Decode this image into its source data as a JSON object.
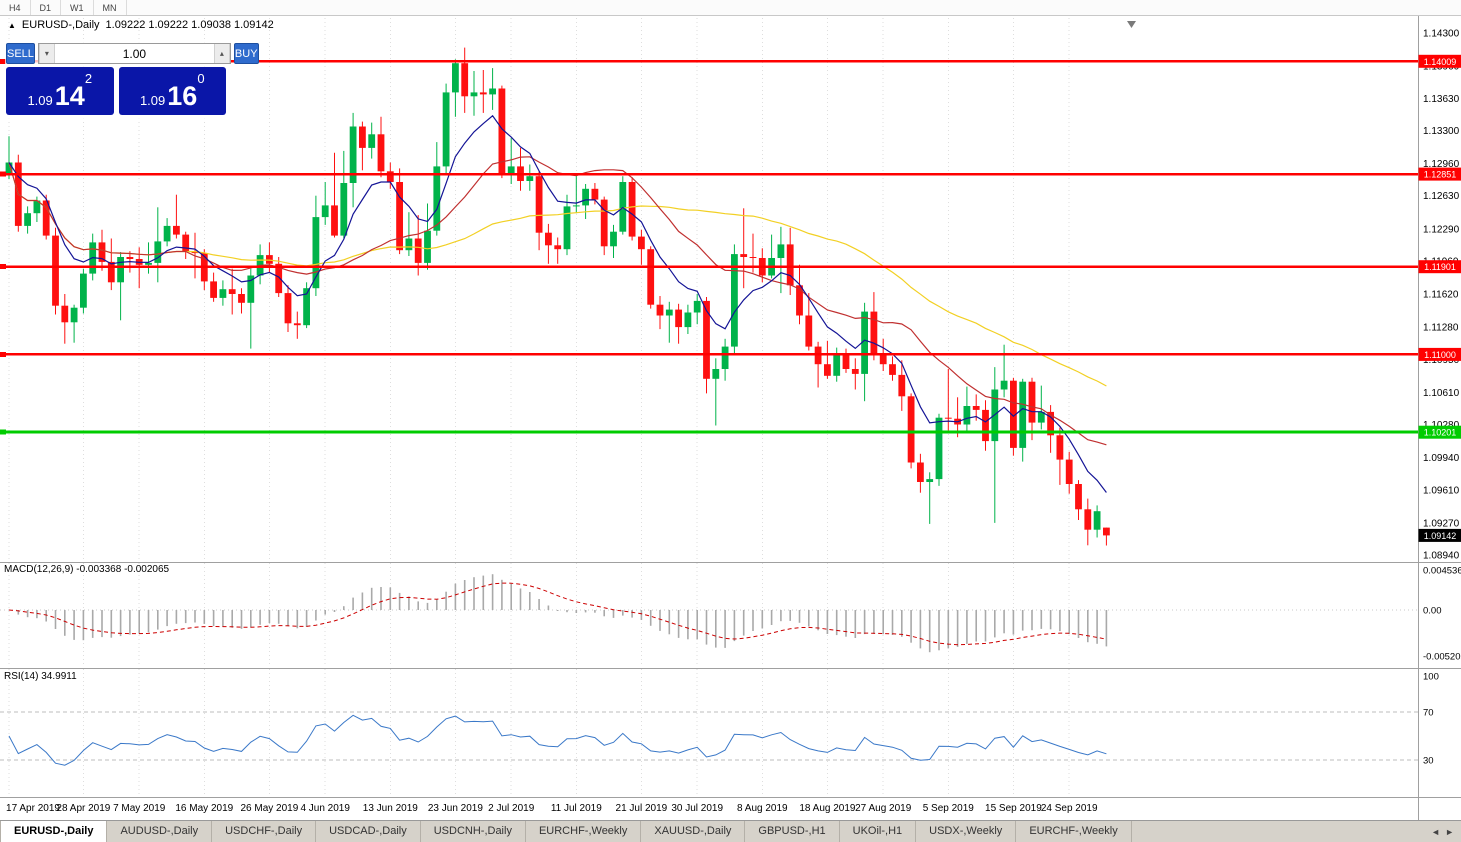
{
  "toolbar": {
    "timeframes": [
      "H4",
      "D1",
      "W1",
      "MN"
    ]
  },
  "chart_header": {
    "collapse_icon": "▲",
    "symbol_label": "EURUSD-,Daily",
    "ohlc": "1.09222 1.09222 1.09038 1.09142"
  },
  "trade_panel": {
    "sell_label": "SELL",
    "buy_label": "BUY",
    "volume": "1.00",
    "vol_down_icon": "▾",
    "vol_up_icon": "▴",
    "sell": {
      "base": "1.09",
      "big": "14",
      "sup": "2"
    },
    "buy": {
      "base": "1.09",
      "big": "16",
      "sup": "0"
    }
  },
  "indicators": {
    "macd_label": "MACD(12,26,9) -0.003368 -0.002065",
    "rsi_label": "RSI(14) 34.9911"
  },
  "tabs": {
    "items": [
      "EURUSD-,Daily",
      "AUDUSD-,Daily",
      "USDCHF-,Daily",
      "USDCAD-,Daily",
      "USDCNH-,Daily",
      "EURCHF-,Weekly",
      "XAUUSD-,Daily",
      "GBPUSD-,H1",
      "UKOil-,H1",
      "USDX-,Weekly",
      "EURCHF-,Weekly"
    ],
    "active_index": 0,
    "scroll_left_icon": "◄",
    "scroll_right_icon": "►"
  },
  "chart_data": {
    "type": "candlestick",
    "symbol": "EURUSD",
    "timeframe": "Daily",
    "colors": {
      "up": "#00b34a",
      "down": "#fe1010",
      "macd_hist": "#a9a9a9",
      "macd_signal": "#cc0000",
      "rsi": "#3a78c8"
    },
    "price_axis_ticks": [
      "1.14300",
      "1.13960",
      "1.13630",
      "1.13300",
      "1.12960",
      "1.12630",
      "1.12290",
      "1.11960",
      "1.11620",
      "1.11280",
      "1.10950",
      "1.10610",
      "1.10280",
      "1.09940",
      "1.09610",
      "1.09270",
      "1.08940"
    ],
    "hlines": [
      {
        "price": 1.14009,
        "label": "1.14009",
        "color": "#ff0000",
        "width": 2.4
      },
      {
        "price": 1.12851,
        "label": "1.12851",
        "color": "#ff0000",
        "width": 2.4
      },
      {
        "price": 1.11901,
        "label": "1.11901",
        "color": "#ff0000",
        "width": 2.4
      },
      {
        "price": 1.11,
        "label": "1.11000",
        "color": "#ff0000",
        "width": 2.4
      },
      {
        "price": 1.10201,
        "label": "1.10201",
        "color": "#00cc00",
        "width": 3
      }
    ],
    "current_price": {
      "value": 1.09142,
      "label": "1.09142"
    },
    "moving_averages": [
      {
        "type": "sma",
        "period": 45,
        "color": "#f2d024"
      },
      {
        "type": "sma",
        "period": 20,
        "color": "#c03030"
      },
      {
        "type": "ema",
        "period": 8,
        "color": "#141496"
      }
    ],
    "macd": {
      "params": [
        12,
        26,
        9
      ],
      "value": -0.003368,
      "signal_value": -0.002065,
      "axis_ticks": [
        {
          "v": 0.004536,
          "t": "0.004536"
        },
        {
          "v": 0,
          "t": "0.00"
        },
        {
          "v": -0.005205,
          "t": "-0.005205"
        }
      ]
    },
    "rsi": {
      "period": 14,
      "value": 34.9911,
      "levels": [
        70,
        30
      ],
      "axis_ticks": [
        {
          "v": 100,
          "t": "100"
        },
        {
          "v": 70,
          "t": "70"
        },
        {
          "v": 30,
          "t": "30"
        }
      ]
    },
    "x_labels": [
      {
        "i": 0,
        "t": "17 Apr 2019"
      },
      {
        "i": 8,
        "t": "28 Apr 2019"
      },
      {
        "i": 14,
        "t": "7 May 2019"
      },
      {
        "i": 21,
        "t": "16 May 2019"
      },
      {
        "i": 28,
        "t": "26 May 2019"
      },
      {
        "i": 34,
        "t": "4 Jun 2019"
      },
      {
        "i": 41,
        "t": "13 Jun 2019"
      },
      {
        "i": 48,
        "t": "23 Jun 2019"
      },
      {
        "i": 54,
        "t": "2 Jul 2019"
      },
      {
        "i": 61,
        "t": "11 Jul 2019"
      },
      {
        "i": 68,
        "t": "21 Jul 2019"
      },
      {
        "i": 74,
        "t": "30 Jul 2019"
      },
      {
        "i": 81,
        "t": "8 Aug 2019"
      },
      {
        "i": 88,
        "t": "18 Aug 2019"
      },
      {
        "i": 94,
        "t": "27 Aug 2019"
      },
      {
        "i": 101,
        "t": "5 Sep 2019"
      },
      {
        "i": 108,
        "t": "15 Sep 2019"
      },
      {
        "i": 114,
        "t": "24 Sep 2019"
      }
    ],
    "candles": [
      [
        1.1284,
        1.1324,
        1.128,
        1.1297
      ],
      [
        1.1297,
        1.1305,
        1.1226,
        1.1232
      ],
      [
        1.1232,
        1.1252,
        1.1224,
        1.1245
      ],
      [
        1.1245,
        1.1262,
        1.1236,
        1.1258
      ],
      [
        1.1258,
        1.1264,
        1.1218,
        1.1222
      ],
      [
        1.1222,
        1.123,
        1.1141,
        1.115
      ],
      [
        1.115,
        1.1162,
        1.1111,
        1.1133
      ],
      [
        1.1133,
        1.1151,
        1.1112,
        1.1148
      ],
      [
        1.1148,
        1.1188,
        1.1142,
        1.1183
      ],
      [
        1.1183,
        1.1224,
        1.1176,
        1.1215
      ],
      [
        1.1215,
        1.1228,
        1.1186,
        1.1195
      ],
      [
        1.1195,
        1.1219,
        1.1166,
        1.1174
      ],
      [
        1.1174,
        1.1205,
        1.1135,
        1.12
      ],
      [
        1.12,
        1.1206,
        1.1184,
        1.1198
      ],
      [
        1.1198,
        1.121,
        1.1168,
        1.1192
      ],
      [
        1.1192,
        1.1215,
        1.1183,
        1.1194
      ],
      [
        1.1194,
        1.1251,
        1.1174,
        1.1216
      ],
      [
        1.1216,
        1.124,
        1.1211,
        1.1232
      ],
      [
        1.1232,
        1.1264,
        1.1219,
        1.1223
      ],
      [
        1.1223,
        1.1226,
        1.1198,
        1.1206
      ],
      [
        1.1206,
        1.1225,
        1.1178,
        1.1204
      ],
      [
        1.1204,
        1.1208,
        1.1166,
        1.1175
      ],
      [
        1.1175,
        1.1184,
        1.1154,
        1.1158
      ],
      [
        1.1158,
        1.1176,
        1.115,
        1.1167
      ],
      [
        1.1167,
        1.1188,
        1.1141,
        1.1162
      ],
      [
        1.1162,
        1.1168,
        1.1142,
        1.1153
      ],
      [
        1.1153,
        1.1188,
        1.1106,
        1.1181
      ],
      [
        1.1181,
        1.1213,
        1.1172,
        1.1202
      ],
      [
        1.1202,
        1.1215,
        1.1184,
        1.1193
      ],
      [
        1.1193,
        1.12,
        1.1159,
        1.1163
      ],
      [
        1.1163,
        1.1171,
        1.1123,
        1.1132
      ],
      [
        1.1132,
        1.1144,
        1.1116,
        1.113
      ],
      [
        1.113,
        1.1174,
        1.1127,
        1.1168
      ],
      [
        1.1168,
        1.1263,
        1.116,
        1.1241
      ],
      [
        1.1241,
        1.1277,
        1.1233,
        1.1253
      ],
      [
        1.1253,
        1.1307,
        1.122,
        1.1222
      ],
      [
        1.1222,
        1.1309,
        1.1219,
        1.1276
      ],
      [
        1.1276,
        1.1348,
        1.1251,
        1.1334
      ],
      [
        1.1334,
        1.1339,
        1.1289,
        1.1312
      ],
      [
        1.1312,
        1.1338,
        1.1301,
        1.1326
      ],
      [
        1.1326,
        1.1344,
        1.1282,
        1.1288
      ],
      [
        1.1288,
        1.1297,
        1.127,
        1.1277
      ],
      [
        1.1277,
        1.1291,
        1.1203,
        1.1207
      ],
      [
        1.1207,
        1.1246,
        1.1201,
        1.1219
      ],
      [
        1.1219,
        1.1243,
        1.1181,
        1.1194
      ],
      [
        1.1194,
        1.1255,
        1.1187,
        1.1227
      ],
      [
        1.1227,
        1.1318,
        1.1222,
        1.1293
      ],
      [
        1.1293,
        1.1378,
        1.1285,
        1.1369
      ],
      [
        1.1369,
        1.1403,
        1.1344,
        1.1399
      ],
      [
        1.1399,
        1.1415,
        1.1348,
        1.1365
      ],
      [
        1.1365,
        1.1391,
        1.1345,
        1.1369
      ],
      [
        1.1369,
        1.1392,
        1.1348,
        1.1367
      ],
      [
        1.1367,
        1.1394,
        1.1351,
        1.1373
      ],
      [
        1.1373,
        1.1376,
        1.1281,
        1.1285
      ],
      [
        1.1285,
        1.1322,
        1.1275,
        1.1293
      ],
      [
        1.1293,
        1.1312,
        1.1268,
        1.1278
      ],
      [
        1.1278,
        1.1295,
        1.1268,
        1.1283
      ],
      [
        1.1283,
        1.1288,
        1.1207,
        1.1225
      ],
      [
        1.1225,
        1.1234,
        1.1193,
        1.1212
      ],
      [
        1.1212,
        1.122,
        1.1193,
        1.1208
      ],
      [
        1.1208,
        1.1264,
        1.1202,
        1.1252
      ],
      [
        1.1252,
        1.1285,
        1.1245,
        1.1253
      ],
      [
        1.1253,
        1.1275,
        1.1239,
        1.127
      ],
      [
        1.127,
        1.1276,
        1.1254,
        1.1259
      ],
      [
        1.1259,
        1.1262,
        1.1202,
        1.1211
      ],
      [
        1.1211,
        1.1233,
        1.1199,
        1.1226
      ],
      [
        1.1226,
        1.1283,
        1.1223,
        1.1277
      ],
      [
        1.1277,
        1.1282,
        1.1217,
        1.1221
      ],
      [
        1.1221,
        1.1228,
        1.1192,
        1.1208
      ],
      [
        1.1208,
        1.1211,
        1.1147,
        1.1151
      ],
      [
        1.1151,
        1.116,
        1.1126,
        1.114
      ],
      [
        1.114,
        1.1154,
        1.1112,
        1.1146
      ],
      [
        1.1146,
        1.1152,
        1.1111,
        1.1128
      ],
      [
        1.1128,
        1.1151,
        1.1121,
        1.1143
      ],
      [
        1.1143,
        1.1162,
        1.1131,
        1.1155
      ],
      [
        1.1155,
        1.1159,
        1.106,
        1.1075
      ],
      [
        1.1075,
        1.1096,
        1.1027,
        1.1085
      ],
      [
        1.1085,
        1.1116,
        1.1073,
        1.1108
      ],
      [
        1.1108,
        1.1213,
        1.1101,
        1.1203
      ],
      [
        1.1203,
        1.125,
        1.1168,
        1.12
      ],
      [
        1.12,
        1.1224,
        1.1184,
        1.1199
      ],
      [
        1.1199,
        1.1209,
        1.1174,
        1.1181
      ],
      [
        1.1181,
        1.1223,
        1.1178,
        1.1199
      ],
      [
        1.1199,
        1.1231,
        1.1163,
        1.1213
      ],
      [
        1.1213,
        1.123,
        1.1161,
        1.1171
      ],
      [
        1.1171,
        1.1192,
        1.1131,
        1.114
      ],
      [
        1.114,
        1.1163,
        1.1104,
        1.1108
      ],
      [
        1.1108,
        1.1113,
        1.1066,
        1.109
      ],
      [
        1.109,
        1.1114,
        1.1075,
        1.1078
      ],
      [
        1.1078,
        1.1107,
        1.1072,
        1.1099
      ],
      [
        1.1099,
        1.1106,
        1.1081,
        1.1085
      ],
      [
        1.1085,
        1.1096,
        1.1064,
        1.108
      ],
      [
        1.108,
        1.1153,
        1.1052,
        1.1144
      ],
      [
        1.1144,
        1.1164,
        1.1094,
        1.1101
      ],
      [
        1.1101,
        1.1116,
        1.1083,
        1.109
      ],
      [
        1.109,
        1.1098,
        1.1073,
        1.1079
      ],
      [
        1.1079,
        1.1094,
        1.1042,
        1.1057
      ],
      [
        1.1057,
        1.106,
        1.0983,
        1.0989
      ],
      [
        1.0989,
        1.0998,
        1.0958,
        1.0969
      ],
      [
        1.0969,
        1.0979,
        1.0926,
        1.0972
      ],
      [
        1.0972,
        1.1039,
        1.0965,
        1.1035
      ],
      [
        1.1035,
        1.1085,
        1.1022,
        1.1034
      ],
      [
        1.1034,
        1.1056,
        1.1015,
        1.1028
      ],
      [
        1.1028,
        1.1067,
        1.102,
        1.1047
      ],
      [
        1.1047,
        1.1059,
        1.1032,
        1.1043
      ],
      [
        1.1043,
        1.1053,
        1.1001,
        1.1011
      ],
      [
        1.1011,
        1.1087,
        1.0927,
        1.1064
      ],
      [
        1.1064,
        1.111,
        1.1056,
        1.1073
      ],
      [
        1.1073,
        1.1076,
        1.0996,
        1.1004
      ],
      [
        1.1004,
        1.1075,
        1.099,
        1.1072
      ],
      [
        1.1072,
        1.1076,
        1.1012,
        1.103
      ],
      [
        1.103,
        1.1068,
        1.1023,
        1.1041
      ],
      [
        1.1041,
        1.1048,
        1.0999,
        1.1017
      ],
      [
        1.1017,
        1.1025,
        1.0966,
        1.0992
      ],
      [
        1.0992,
        1.1,
        1.0957,
        1.0967
      ],
      [
        1.0967,
        1.0971,
        1.093,
        1.0941
      ],
      [
        1.0941,
        1.0952,
        1.0904,
        1.092
      ],
      [
        1.092,
        1.0945,
        1.0912,
        1.0939
      ],
      [
        1.09222,
        1.09222,
        1.09038,
        1.09142
      ]
    ]
  }
}
